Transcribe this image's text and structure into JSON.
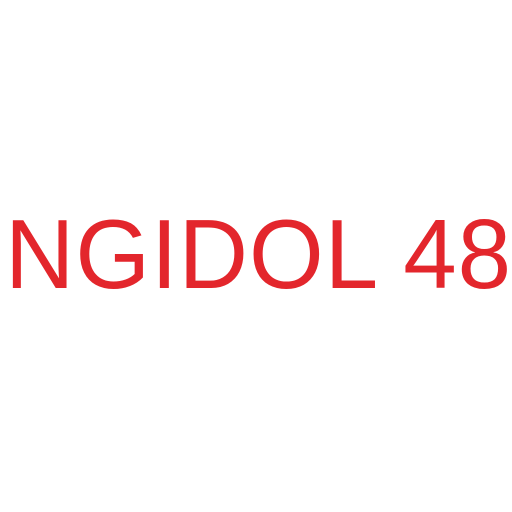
{
  "logo": {
    "text": "NGIDOL 48",
    "color": "#e3262c"
  },
  "background": "#ffffff"
}
